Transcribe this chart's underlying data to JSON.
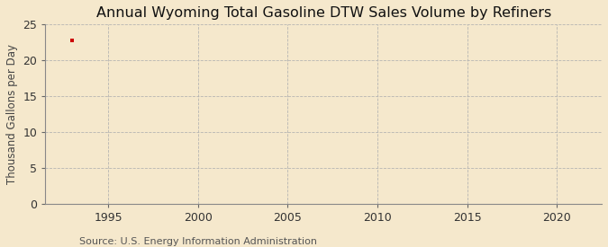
{
  "title": "Annual Wyoming Total Gasoline DTW Sales Volume by Refiners",
  "ylabel": "Thousand Gallons per Day",
  "source": "Source: U.S. Energy Information Administration",
  "background_color": "#f5e8cc",
  "plot_bg_color": "#f5e8cc",
  "data_x": [
    1993
  ],
  "data_y": [
    22.8
  ],
  "data_color": "#cc0000",
  "xlim": [
    1991.5,
    2022.5
  ],
  "ylim": [
    0,
    25
  ],
  "xticks": [
    1995,
    2000,
    2005,
    2010,
    2015,
    2020
  ],
  "yticks": [
    0,
    5,
    10,
    15,
    20,
    25
  ],
  "grid_color": "#b0b0b0",
  "title_fontsize": 11.5,
  "label_fontsize": 8.5,
  "tick_fontsize": 9,
  "source_fontsize": 8
}
